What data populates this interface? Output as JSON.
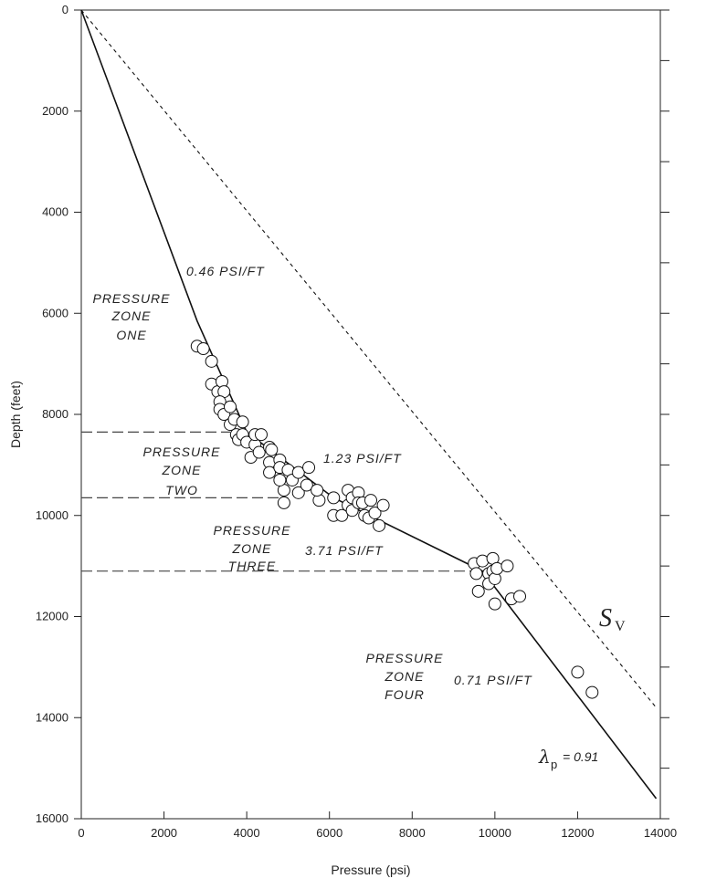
{
  "chart_data": {
    "type": "scatter",
    "xlabel": "Pressure (psi)",
    "ylabel": "Depth (feet)",
    "xlim": [
      0,
      14000
    ],
    "ylim": [
      0,
      16000
    ],
    "y_inverted": true,
    "x_ticks": [
      0,
      2000,
      4000,
      6000,
      8000,
      10000,
      12000,
      14000
    ],
    "y_ticks": [
      0,
      2000,
      4000,
      6000,
      8000,
      10000,
      12000,
      14000,
      16000
    ],
    "grid": false,
    "lines": [
      {
        "style": "solid",
        "points": [
          [
            0,
            0
          ],
          [
            2800,
            6150
          ],
          [
            4000,
            8350
          ],
          [
            6100,
            9650
          ],
          [
            9700,
            11100
          ],
          [
            13900,
            15600
          ]
        ]
      },
      {
        "style": "dotted",
        "points": [
          [
            0,
            0
          ],
          [
            13900,
            13800
          ]
        ]
      }
    ],
    "zone_boundaries": [
      {
        "depth": 8350,
        "x_end": 3600
      },
      {
        "depth": 9650,
        "x_end": 5000
      },
      {
        "depth": 11100,
        "x_end": 9600
      }
    ],
    "points": [
      [
        2800,
        6650
      ],
      [
        2950,
        6700
      ],
      [
        3150,
        6950
      ],
      [
        3150,
        7400
      ],
      [
        3300,
        7550
      ],
      [
        3400,
        7350
      ],
      [
        3450,
        7550
      ],
      [
        3350,
        7750
      ],
      [
        3350,
        7900
      ],
      [
        3450,
        8000
      ],
      [
        3600,
        7850
      ],
      [
        3600,
        8200
      ],
      [
        3700,
        8100
      ],
      [
        3750,
        8400
      ],
      [
        3800,
        8500
      ],
      [
        3900,
        8150
      ],
      [
        3900,
        8400
      ],
      [
        4000,
        8550
      ],
      [
        4100,
        8850
      ],
      [
        4200,
        8600
      ],
      [
        4200,
        8400
      ],
      [
        4300,
        8750
      ],
      [
        4350,
        8400
      ],
      [
        4550,
        8650
      ],
      [
        4550,
        8950
      ],
      [
        4600,
        8700
      ],
      [
        4550,
        9150
      ],
      [
        4800,
        8900
      ],
      [
        4800,
        9050
      ],
      [
        4900,
        9500
      ],
      [
        4800,
        9300
      ],
      [
        4900,
        9750
      ],
      [
        5000,
        9100
      ],
      [
        5100,
        9300
      ],
      [
        5250,
        9150
      ],
      [
        5250,
        9550
      ],
      [
        5450,
        9400
      ],
      [
        5500,
        9050
      ],
      [
        5750,
        9700
      ],
      [
        5700,
        9500
      ],
      [
        6100,
        9650
      ],
      [
        6100,
        10000
      ],
      [
        6300,
        10000
      ],
      [
        6450,
        9500
      ],
      [
        6450,
        9800
      ],
      [
        6550,
        9900
      ],
      [
        6550,
        9650
      ],
      [
        6700,
        9550
      ],
      [
        6700,
        9750
      ],
      [
        6800,
        9750
      ],
      [
        6850,
        10000
      ],
      [
        6950,
        10050
      ],
      [
        7000,
        9700
      ],
      [
        7100,
        9950
      ],
      [
        7200,
        10200
      ],
      [
        7300,
        9800
      ],
      [
        9500,
        10950
      ],
      [
        9550,
        11150
      ],
      [
        9600,
        11500
      ],
      [
        9700,
        10900
      ],
      [
        9850,
        11150
      ],
      [
        9850,
        11350
      ],
      [
        9950,
        10850
      ],
      [
        9950,
        11100
      ],
      [
        10000,
        11250
      ],
      [
        10000,
        11750
      ],
      [
        10050,
        11050
      ],
      [
        10300,
        11000
      ],
      [
        10400,
        11650
      ],
      [
        10600,
        11600
      ],
      [
        12000,
        13100
      ],
      [
        12350,
        13500
      ]
    ],
    "labels": {
      "zone_one": [
        "PRESSURE",
        "ZONE",
        "ONE"
      ],
      "zone_two": [
        "PRESSURE",
        "ZONE",
        "TWO"
      ],
      "zone_three": [
        "PRESSURE",
        "ZONE",
        "THREE"
      ],
      "zone_four": [
        "PRESSURE",
        "ZONE",
        "FOUR"
      ],
      "gradient_1": "0.46 PSI/FT",
      "gradient_2": "1.23 PSI/FT",
      "gradient_3": "3.71 PSI/FT",
      "gradient_4": "0.71 PSI/FT",
      "sv_main": "S",
      "sv_sub": "V",
      "lambda_symbol": "λ",
      "lambda_sub": "p",
      "lambda_value": "= 0.91"
    }
  }
}
